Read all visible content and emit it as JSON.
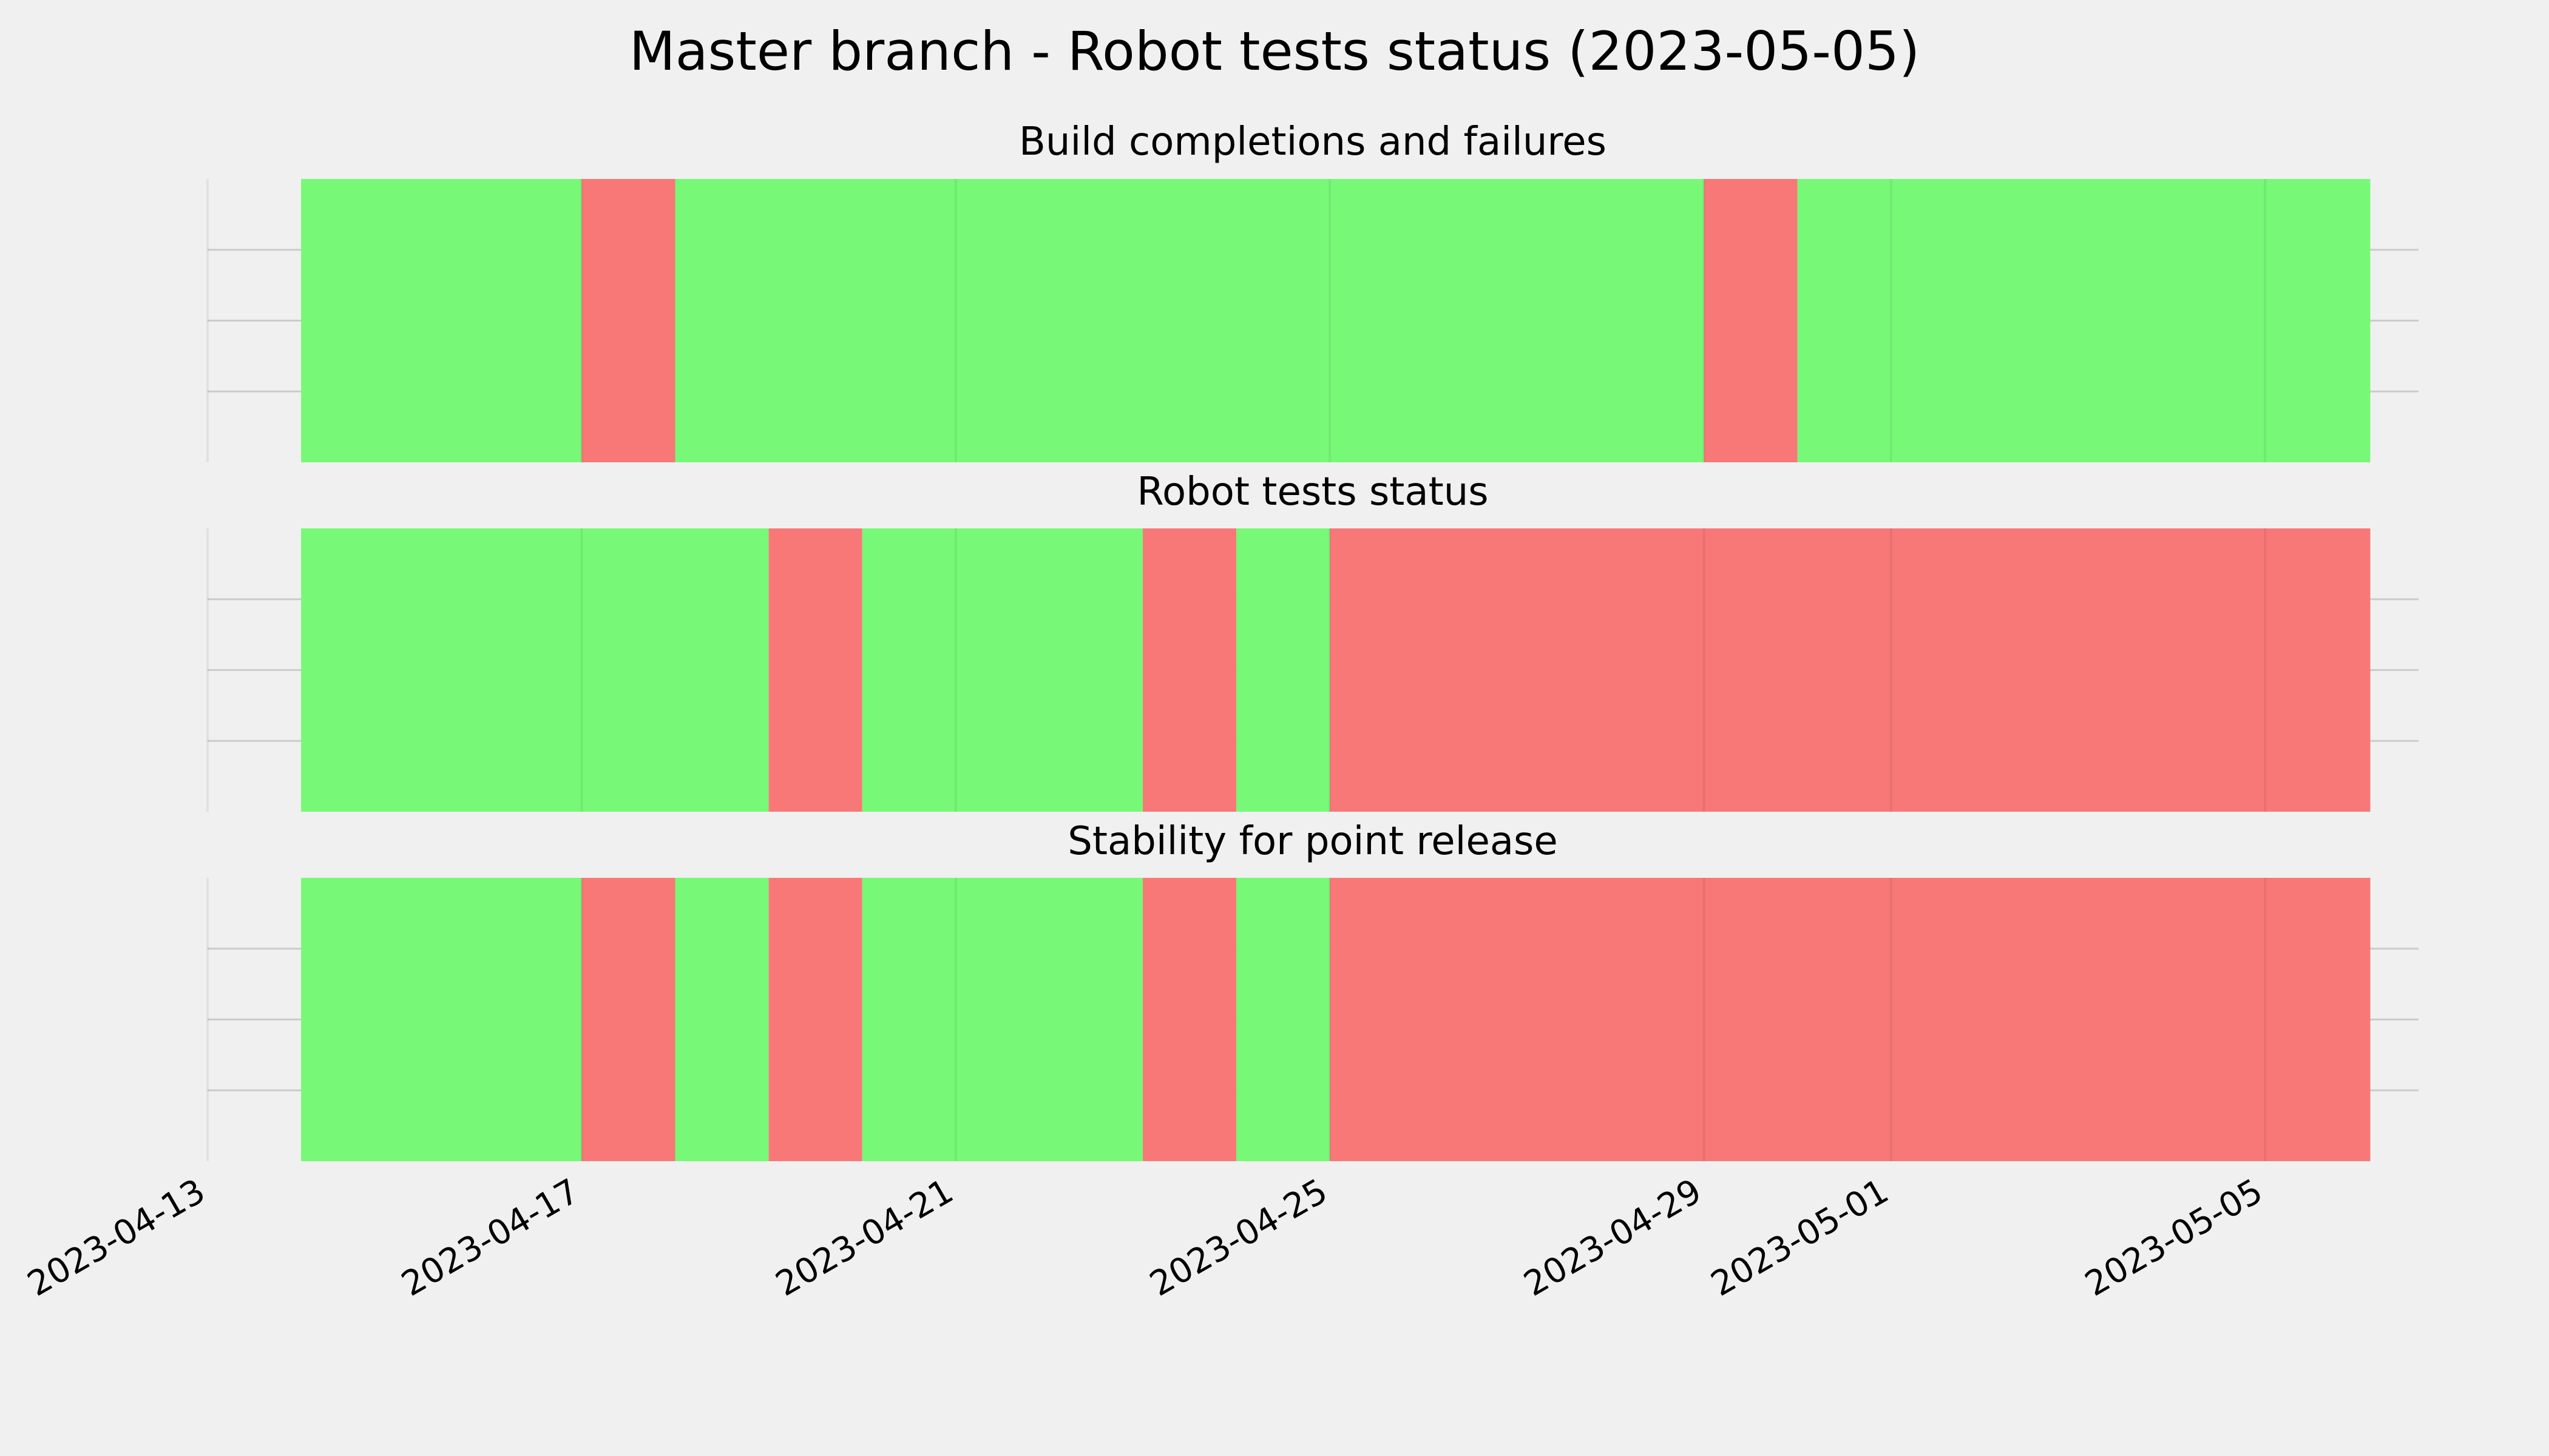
{
  "chart_data": {
    "type": "timeline",
    "title": "Master branch - Robot tests status (2023-05-05)",
    "x_range": [
      "2023-04-13",
      "2023-05-06T03:00"
    ],
    "x_ticks": [
      "2023-04-13",
      "2023-04-17",
      "2023-04-21",
      "2023-04-25",
      "2023-04-29",
      "2023-05-01",
      "2023-05-05"
    ],
    "grid": true,
    "legend": "none",
    "colors": {
      "pass": "#77f977",
      "fail": "#f87878",
      "background": "#f0f0f0",
      "grid": "#cbcbcb"
    },
    "panels": [
      {
        "title": "Build completions and failures",
        "segments": [
          {
            "start": "2023-04-14",
            "end": "2023-04-17",
            "status": "pass"
          },
          {
            "start": "2023-04-17",
            "end": "2023-04-18",
            "status": "fail"
          },
          {
            "start": "2023-04-18",
            "end": "2023-04-29",
            "status": "pass"
          },
          {
            "start": "2023-04-29",
            "end": "2023-04-30",
            "status": "fail"
          },
          {
            "start": "2023-04-30",
            "end": "2023-05-06T03:00",
            "status": "pass"
          }
        ]
      },
      {
        "title": "Robot tests status",
        "segments": [
          {
            "start": "2023-04-14",
            "end": "2023-04-19",
            "status": "pass"
          },
          {
            "start": "2023-04-19",
            "end": "2023-04-20",
            "status": "fail"
          },
          {
            "start": "2023-04-20",
            "end": "2023-04-23",
            "status": "pass"
          },
          {
            "start": "2023-04-23",
            "end": "2023-04-24",
            "status": "fail"
          },
          {
            "start": "2023-04-24",
            "end": "2023-04-25",
            "status": "pass"
          },
          {
            "start": "2023-04-25",
            "end": "2023-05-06T03:00",
            "status": "fail"
          }
        ]
      },
      {
        "title": "Stability for point release",
        "segments": [
          {
            "start": "2023-04-14",
            "end": "2023-04-17",
            "status": "pass"
          },
          {
            "start": "2023-04-17",
            "end": "2023-04-18",
            "status": "fail"
          },
          {
            "start": "2023-04-18",
            "end": "2023-04-19",
            "status": "pass"
          },
          {
            "start": "2023-04-19",
            "end": "2023-04-20",
            "status": "fail"
          },
          {
            "start": "2023-04-20",
            "end": "2023-04-23",
            "status": "pass"
          },
          {
            "start": "2023-04-23",
            "end": "2023-04-24",
            "status": "fail"
          },
          {
            "start": "2023-04-24",
            "end": "2023-04-25",
            "status": "pass"
          },
          {
            "start": "2023-04-25",
            "end": "2023-05-06T03:00",
            "status": "fail"
          }
        ]
      }
    ]
  }
}
